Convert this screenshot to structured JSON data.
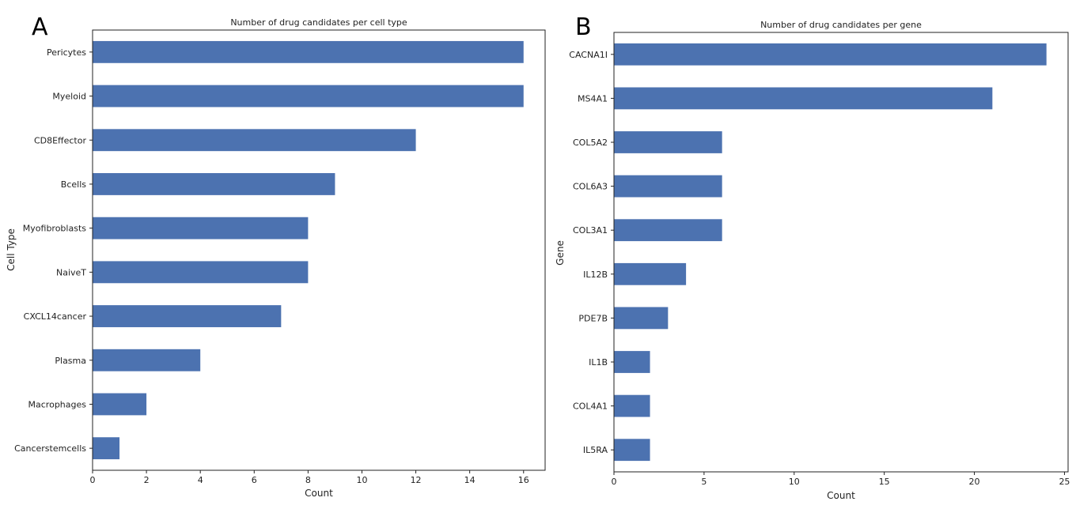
{
  "panels": [
    {
      "letter": "A"
    },
    {
      "letter": "B"
    }
  ],
  "bar_color": "#4c72b0",
  "chart_data": [
    {
      "type": "bar",
      "orientation": "horizontal",
      "title": "Number of drug candidates per cell type",
      "xlabel": "Count",
      "ylabel": "Cell Type",
      "categories": [
        "Pericytes",
        "Myeloid",
        "CD8Effector",
        "Bcells",
        "Myofibroblasts",
        "NaiveT",
        "CXCL14cancer",
        "Plasma",
        "Macrophages",
        "Cancerstemcells"
      ],
      "values": [
        16,
        16,
        12,
        9,
        8,
        8,
        7,
        4,
        2,
        1
      ],
      "xlim": [
        0,
        16.8
      ],
      "xticks": [
        "0",
        "2",
        "4",
        "6",
        "8",
        "10",
        "12",
        "14",
        "16"
      ],
      "grid": false,
      "legend": "none"
    },
    {
      "type": "bar",
      "orientation": "horizontal",
      "title": "Number of drug candidates per gene",
      "xlabel": "Count",
      "ylabel": "Gene",
      "categories": [
        "CACNA1I",
        "MS4A1",
        "COL5A2",
        "COL6A3",
        "COL3A1",
        "IL12B",
        "PDE7B",
        "IL1B",
        "COL4A1",
        "IL5RA"
      ],
      "values": [
        24,
        21,
        6,
        6,
        6,
        4,
        3,
        2,
        2,
        2
      ],
      "xlim": [
        0,
        25.2
      ],
      "xticks": [
        "0",
        "5",
        "10",
        "15",
        "20",
        "25"
      ],
      "grid": false,
      "legend": "none"
    }
  ]
}
